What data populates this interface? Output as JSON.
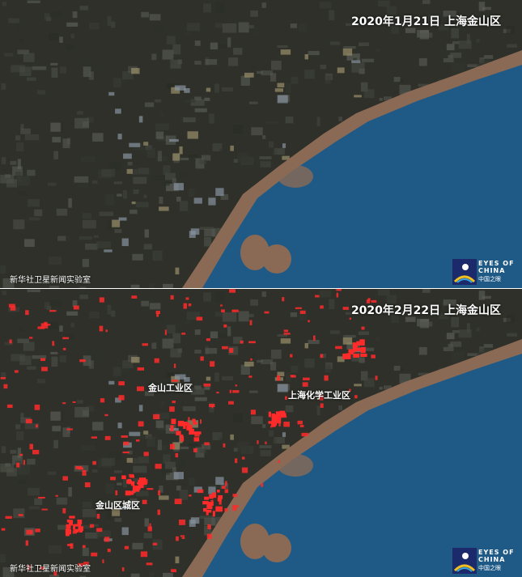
{
  "panels": [
    {
      "date_label": "2020年1月21日  上海金山区",
      "credit": "新华社卫星新闻实验室",
      "logo": {
        "text_line1": "EYES OF",
        "text_line2": "CHINA",
        "text_cn": "中国之眼"
      }
    },
    {
      "date_label": "2020年2月22日  上海金山区",
      "credit": "新华社卫星新闻实验室",
      "logo": {
        "text_line1": "EYES OF",
        "text_line2": "CHINA",
        "text_cn": "中国之眼"
      },
      "labels": [
        "金山工业区",
        "上海化学工业区",
        "金山区城区"
      ]
    }
  ],
  "colors": {
    "land": "#2e3029",
    "sea": "#1f5a86",
    "mudflat": "#8a6a55",
    "hotspot": "#ff2a2a"
  }
}
